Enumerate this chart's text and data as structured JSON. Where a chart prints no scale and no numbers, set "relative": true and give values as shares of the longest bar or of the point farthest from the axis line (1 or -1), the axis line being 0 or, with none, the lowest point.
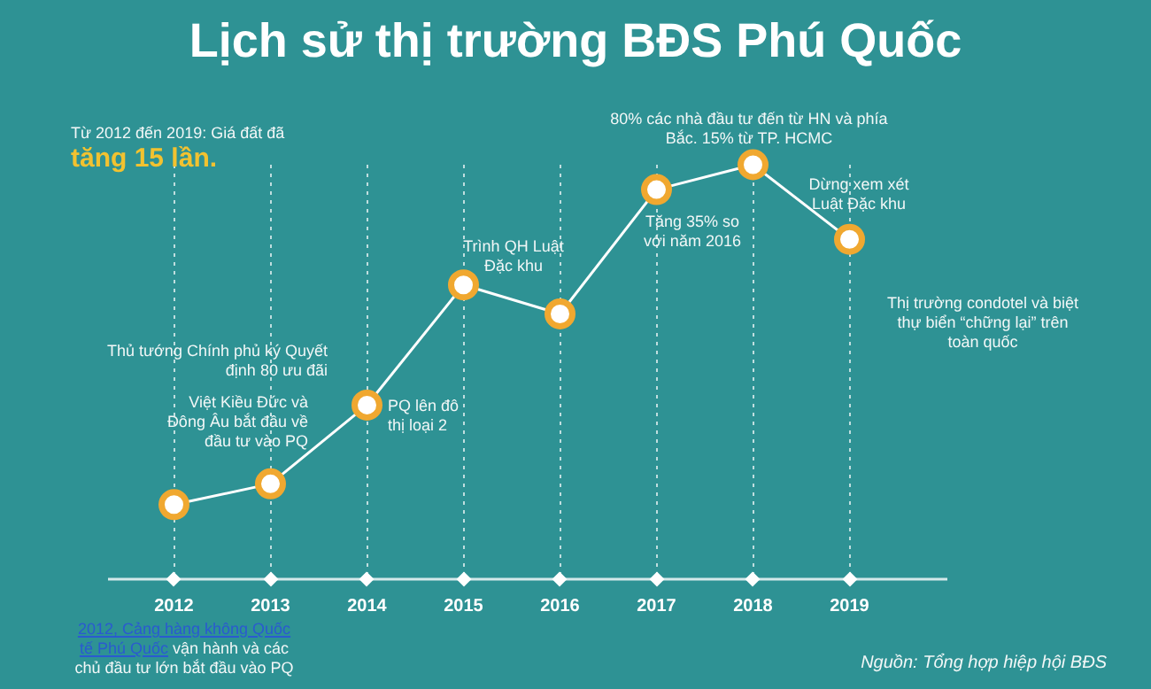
{
  "chart_data": {
    "type": "line",
    "title": "Lịch sử thị trường BĐS Phú Quốc",
    "relative": true,
    "categories": [
      "2012",
      "2013",
      "2014",
      "2015",
      "2016",
      "2017",
      "2018",
      "2019"
    ],
    "series": [
      {
        "color": "#ffffff",
        "values": [
          0.18,
          0.23,
          0.42,
          0.71,
          0.64,
          0.94,
          1,
          0.82
        ]
      }
    ],
    "marker": "circle",
    "grid": "x",
    "legend": false,
    "annotations": [
      "Từ 2012 đến 2019: Giá đất đã",
      "tăng 15 lần.",
      "Thủ tướng Chính phủ ký Quyết định 80 ưu đãi",
      "Việt Kiều Đức và Đông Âu bắt đầu về đầu tư vào PQ",
      "PQ lên đô thị loại 2",
      "Trình QH Luật Đặc khu",
      "Tăng 35% so với năm 2016",
      "80% các nhà đầu tư đến từ HN và phía Bắc. 15% từ TP. HCMC",
      "Dừng xem xét Luật Đặc khu",
      "Thị trường condotel và biệt thự biển “chững lại” trên toàn quốc",
      "2012, Cảng hàng không Quốc tế Phú Quốc",
      "vận hành và các chủ đầu tư lớn bắt đầu vào PQ",
      "Nguồn: Tổng hợp hiệp hội BĐS"
    ]
  }
}
